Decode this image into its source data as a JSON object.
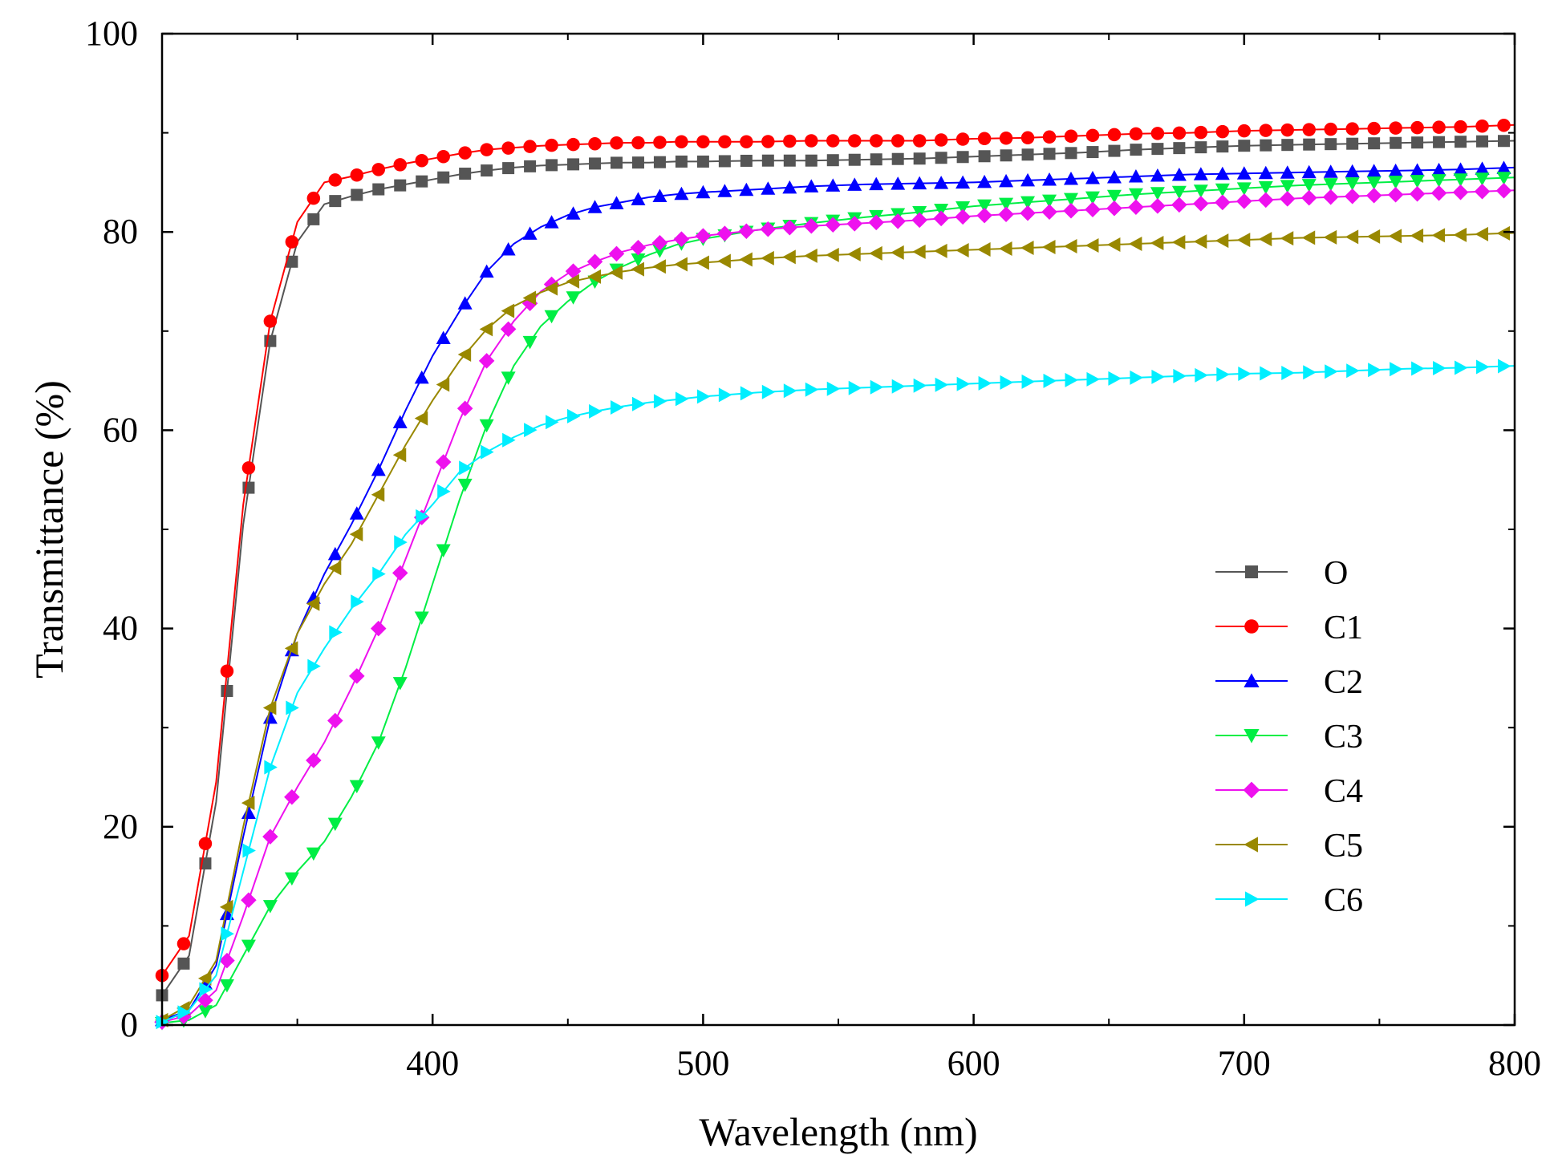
{
  "chart_data": {
    "type": "line",
    "title": "",
    "xlabel": "Wavelength (nm)",
    "ylabel": "Transmittance (%)",
    "xlim": [
      300,
      800
    ],
    "ylim": [
      0,
      100
    ],
    "xticks": [
      400,
      500,
      600,
      700,
      800
    ],
    "yticks": [
      0,
      20,
      40,
      60,
      80,
      100
    ],
    "legend_position": "right",
    "series": [
      {
        "name": "O",
        "color": "#555555",
        "marker": "square",
        "x": [
          300,
          310,
          320,
          330,
          340,
          350,
          360,
          370,
          380,
          390,
          400,
          410,
          420,
          430,
          440,
          450,
          460,
          470,
          480,
          490,
          500,
          520,
          540,
          560,
          580,
          600,
          620,
          640,
          660,
          680,
          700,
          720,
          740,
          760,
          780,
          800
        ],
        "y": [
          3,
          7,
          22.5,
          50.5,
          69,
          79,
          82.8,
          83.6,
          84.3,
          84.8,
          85.3,
          85.8,
          86.2,
          86.5,
          86.7,
          86.8,
          86.9,
          87,
          87,
          87.1,
          87.1,
          87.2,
          87.2,
          87.3,
          87.4,
          87.6,
          87.8,
          88,
          88.3,
          88.5,
          88.7,
          88.8,
          88.9,
          89,
          89.1,
          89.2
        ]
      },
      {
        "name": "C1",
        "color": "#ff0000",
        "marker": "circle",
        "x": [
          300,
          310,
          320,
          330,
          340,
          350,
          360,
          370,
          380,
          390,
          400,
          410,
          420,
          430,
          440,
          450,
          460,
          470,
          480,
          490,
          500,
          520,
          540,
          560,
          580,
          600,
          620,
          640,
          660,
          680,
          700,
          720,
          740,
          760,
          780,
          800
        ],
        "y": [
          5,
          9,
          24.5,
          52.5,
          71,
          81,
          85,
          85.6,
          86.3,
          86.9,
          87.4,
          87.9,
          88.3,
          88.5,
          88.7,
          88.8,
          88.9,
          89,
          89,
          89.1,
          89.1,
          89.1,
          89.2,
          89.2,
          89.2,
          89.4,
          89.5,
          89.7,
          89.9,
          90,
          90.2,
          90.3,
          90.4,
          90.5,
          90.6,
          90.8
        ]
      },
      {
        "name": "C2",
        "color": "#0000ff",
        "marker": "triangle-up",
        "x": [
          300,
          310,
          320,
          330,
          340,
          350,
          360,
          370,
          380,
          390,
          400,
          410,
          420,
          430,
          440,
          450,
          460,
          470,
          480,
          490,
          500,
          520,
          540,
          560,
          580,
          600,
          620,
          640,
          660,
          680,
          700,
          720,
          740,
          760,
          780,
          800
        ],
        "y": [
          0.5,
          1.5,
          6,
          19,
          31,
          39.5,
          45.5,
          50.5,
          56,
          62,
          67.5,
          72,
          76,
          78.8,
          80.5,
          81.7,
          82.5,
          83,
          83.5,
          83.8,
          84,
          84.3,
          84.6,
          84.8,
          84.9,
          85,
          85.2,
          85.4,
          85.6,
          85.8,
          85.9,
          86,
          86.1,
          86.2,
          86.3,
          86.5
        ]
      },
      {
        "name": "C3",
        "color": "#00ee44",
        "marker": "triangle-down",
        "x": [
          300,
          310,
          320,
          330,
          340,
          350,
          360,
          370,
          380,
          390,
          400,
          410,
          420,
          430,
          440,
          450,
          460,
          470,
          480,
          490,
          500,
          520,
          540,
          560,
          580,
          600,
          620,
          640,
          660,
          680,
          700,
          720,
          740,
          760,
          780,
          800
        ],
        "y": [
          0.2,
          0.5,
          2,
          7,
          12,
          15.5,
          18.5,
          23,
          28.5,
          36,
          44.5,
          53,
          60.5,
          66.5,
          70.5,
          73,
          75,
          76.5,
          77.7,
          78.7,
          79.3,
          80.2,
          80.9,
          81.5,
          82,
          82.6,
          83,
          83.4,
          83.8,
          84.1,
          84.4,
          84.7,
          84.9,
          85.1,
          85.3,
          85.5
        ]
      },
      {
        "name": "C4",
        "color": "#ee11ee",
        "marker": "diamond",
        "x": [
          300,
          310,
          320,
          330,
          340,
          350,
          360,
          370,
          380,
          390,
          400,
          410,
          420,
          430,
          440,
          450,
          460,
          470,
          480,
          490,
          500,
          520,
          540,
          560,
          580,
          600,
          620,
          640,
          660,
          680,
          700,
          720,
          740,
          760,
          780,
          800
        ],
        "y": [
          0.3,
          1,
          3.5,
          11,
          19,
          24,
          28.5,
          34,
          40,
          47,
          54,
          61,
          67,
          71,
          74,
          75.8,
          77,
          78,
          78.7,
          79.2,
          79.6,
          80.2,
          80.6,
          80.9,
          81.2,
          81.6,
          81.9,
          82.2,
          82.5,
          82.8,
          83.1,
          83.4,
          83.6,
          83.8,
          84,
          84.2
        ]
      },
      {
        "name": "C5",
        "color": "#998800",
        "marker": "triangle-left",
        "x": [
          300,
          310,
          320,
          330,
          340,
          350,
          360,
          370,
          380,
          390,
          400,
          410,
          420,
          430,
          440,
          450,
          460,
          470,
          480,
          490,
          500,
          520,
          540,
          560,
          580,
          600,
          620,
          640,
          660,
          680,
          700,
          720,
          740,
          760,
          780,
          800
        ],
        "y": [
          0.5,
          2,
          6.5,
          20,
          32,
          39.5,
          44.5,
          48.5,
          53.5,
          58.5,
          63,
          67,
          70.2,
          72.5,
          73.9,
          74.9,
          75.5,
          76,
          76.4,
          76.7,
          76.9,
          77.3,
          77.6,
          77.8,
          78,
          78.2,
          78.4,
          78.6,
          78.8,
          79,
          79.2,
          79.4,
          79.5,
          79.6,
          79.7,
          79.9
        ]
      },
      {
        "name": "C6",
        "color": "#00eeff",
        "marker": "triangle-right",
        "x": [
          300,
          310,
          320,
          330,
          340,
          350,
          360,
          370,
          380,
          390,
          400,
          410,
          420,
          430,
          440,
          450,
          460,
          470,
          480,
          490,
          500,
          520,
          540,
          560,
          580,
          600,
          620,
          640,
          660,
          680,
          700,
          720,
          740,
          760,
          780,
          800
        ],
        "y": [
          0.3,
          1.5,
          5,
          15.5,
          26,
          33.5,
          38,
          42,
          45.5,
          49.5,
          52.5,
          55.8,
          57.8,
          59.3,
          60.5,
          61.3,
          61.9,
          62.4,
          62.8,
          63.1,
          63.4,
          63.8,
          64.1,
          64.3,
          64.5,
          64.7,
          64.9,
          65.1,
          65.3,
          65.5,
          65.7,
          65.8,
          66,
          66.2,
          66.3,
          66.5
        ]
      }
    ]
  }
}
